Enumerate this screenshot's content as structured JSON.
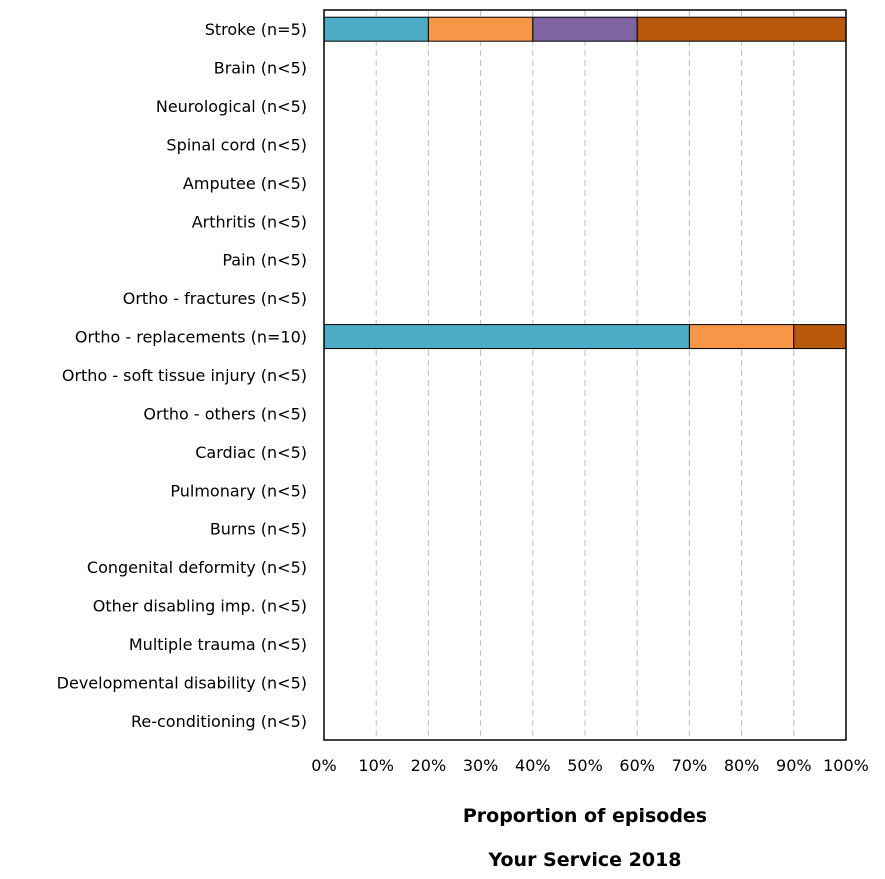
{
  "chart_data": {
    "type": "bar",
    "orientation": "horizontal",
    "stacked": true,
    "categories": [
      "Stroke (n=5)",
      "Brain (n<5)",
      "Neurological (n<5)",
      "Spinal cord (n<5)",
      "Amputee (n<5)",
      "Arthritis (n<5)",
      "Pain (n<5)",
      "Ortho - fractures (n<5)",
      "Ortho - replacements (n=10)",
      "Ortho - soft tissue injury (n<5)",
      "Ortho - others (n<5)",
      "Cardiac (n<5)",
      "Pulmonary (n<5)",
      "Burns (n<5)",
      "Congenital deformity (n<5)",
      "Other disabling imp. (n<5)",
      "Multiple trauma (n<5)",
      "Developmental disability (n<5)",
      "Re-conditioning (n<5)"
    ],
    "series": [
      {
        "color": "#4bacc6",
        "values": [
          20,
          0,
          0,
          0,
          0,
          0,
          0,
          0,
          70,
          0,
          0,
          0,
          0,
          0,
          0,
          0,
          0,
          0,
          0
        ]
      },
      {
        "color": "#f79646",
        "values": [
          20,
          0,
          0,
          0,
          0,
          0,
          0,
          0,
          20,
          0,
          0,
          0,
          0,
          0,
          0,
          0,
          0,
          0,
          0
        ]
      },
      {
        "color": "#8064a2",
        "values": [
          20,
          0,
          0,
          0,
          0,
          0,
          0,
          0,
          0,
          0,
          0,
          0,
          0,
          0,
          0,
          0,
          0,
          0,
          0
        ]
      },
      {
        "color": "#b7580b",
        "values": [
          40,
          0,
          0,
          0,
          0,
          0,
          0,
          0,
          10,
          0,
          0,
          0,
          0,
          0,
          0,
          0,
          0,
          0,
          0
        ]
      }
    ],
    "xticks": [
      "0%",
      "10%",
      "20%",
      "30%",
      "40%",
      "50%",
      "60%",
      "70%",
      "80%",
      "90%",
      "100%"
    ],
    "xlim": [
      0,
      100
    ],
    "xlabel": "Proportion of episodes",
    "subtitle": "Your Service 2018",
    "grid": "vertical-dashed",
    "legend": "none"
  }
}
